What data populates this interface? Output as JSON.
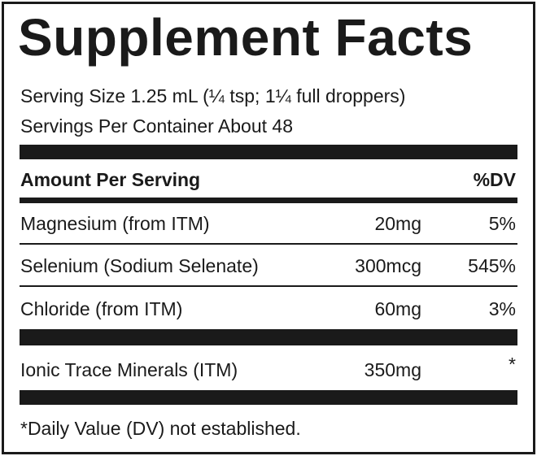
{
  "title": "Supplement Facts",
  "serving_size": "Serving Size 1.25 mL (¼ tsp; 1¼ full droppers)",
  "servings_per_container": "Servings Per Container About 48",
  "header": {
    "amount": "Amount Per Serving",
    "dv": "%DV"
  },
  "rows": [
    {
      "name": "Magnesium (from ITM)",
      "amount": "20mg",
      "dv": "5%"
    },
    {
      "name": "Selenium (Sodium Selenate)",
      "amount": "300mcg",
      "dv": "545%"
    },
    {
      "name": "Chloride (from ITM)",
      "amount": "60mg",
      "dv": "3%"
    },
    {
      "name": "Ionic Trace Minerals (ITM)",
      "amount": "350mg",
      "dv": "*"
    }
  ],
  "footnote": "*Daily Value (DV) not established."
}
